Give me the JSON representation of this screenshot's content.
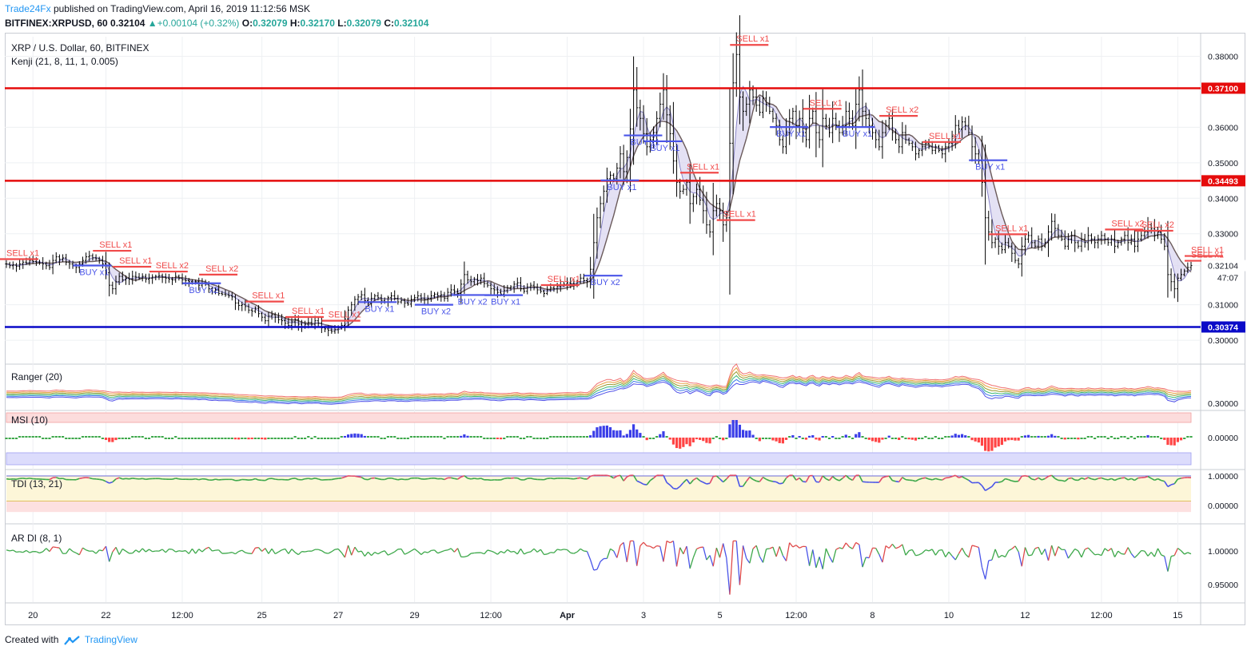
{
  "header": {
    "brand": "Trade24Fx",
    "published": "published on TradingView.com, April 16, 2019 11:12:56 MSK",
    "symbol": "BITFINEX:XRPUSD, 60",
    "last": "0.32104",
    "change": "+0.00104 (+0.32%)",
    "o_label": "O:",
    "o": "0.32079",
    "h_label": "H:",
    "h": "0.32170",
    "l_label": "L:",
    "l": "0.32079",
    "c_label": "C:",
    "c": "0.32104"
  },
  "footer": {
    "created_with": "Created with",
    "brand": "TradingView"
  },
  "colors": {
    "up": "#26a69a",
    "brand": "#2196f3",
    "resistance": "#e50b0b",
    "support": "#0a0ac8",
    "sell": "#f04a4a",
    "buy": "#4a55e8",
    "grid": "#eef0f3",
    "border": "#c9ccd3",
    "hist_pos": "#3b3ee8",
    "hist_neg": "#f44",
    "hist_neu": "#3da84a"
  },
  "chart_data": [
    {
      "type": "line",
      "name": "price",
      "title": "XRP / U.S. Dollar, 60, BITFINEX",
      "indicator": "Kenji (21, 8, 11, 1, 0.005)",
      "ylim": [
        0.2935,
        0.3855
      ],
      "y_ticks": [
        "0.38000",
        "0.36000",
        "0.35000",
        "0.34000",
        "0.33000",
        "0.32104",
        "0.31000",
        "0.30000"
      ],
      "y_tick_values": [
        0.38,
        0.36,
        0.35,
        0.34,
        0.33,
        0.32104,
        0.31,
        0.3
      ],
      "countdown": "47:07",
      "levels": [
        {
          "label": "0.37100",
          "value": 0.371,
          "kind": "resistance"
        },
        {
          "label": "0.34493",
          "value": 0.34493,
          "kind": "resistance"
        },
        {
          "label": "0.30374",
          "value": 0.30374,
          "kind": "support"
        }
      ],
      "x_labels": [
        "20",
        "22",
        "12:00",
        "25",
        "27",
        "29",
        "12:00",
        "Apr",
        "3",
        "5",
        "12:00",
        "8",
        "10",
        "12",
        "12:00",
        "15"
      ],
      "x_label_index": [
        8,
        30,
        53,
        77,
        100,
        123,
        146,
        169,
        192,
        215,
        238,
        261,
        284,
        307,
        330,
        353
      ],
      "x_bold": [
        false,
        false,
        false,
        false,
        false,
        false,
        false,
        true,
        false,
        false,
        false,
        false,
        false,
        false,
        false,
        false
      ],
      "close_approx": [
        0.3215,
        0.321,
        0.3212,
        0.3208,
        0.3215,
        0.322,
        0.3218,
        0.3225,
        0.3222,
        0.322,
        0.3218,
        0.3215,
        0.321,
        0.3205,
        0.3225,
        0.3235,
        0.3228,
        0.3232,
        0.322,
        0.3215,
        0.321,
        0.3205,
        0.3215,
        0.3225,
        0.3235,
        0.3238,
        0.3232,
        0.323,
        0.3225,
        0.3215,
        0.319,
        0.3155,
        0.3145,
        0.3165,
        0.318,
        0.317,
        0.3175,
        0.3172,
        0.318,
        0.3178,
        0.3175,
        0.318,
        0.3172,
        0.3175,
        0.3178,
        0.318,
        0.3182,
        0.3178,
        0.3175,
        0.3172,
        0.317,
        0.318,
        0.3175,
        0.317,
        0.3168,
        0.3165,
        0.3162,
        0.3165,
        0.3155,
        0.316,
        0.3158,
        0.3145,
        0.3138,
        0.3142,
        0.3132,
        0.313,
        0.3128,
        0.3125,
        0.3122,
        0.3105,
        0.3098,
        0.31,
        0.3095,
        0.3085,
        0.3082,
        0.309,
        0.3075,
        0.3065,
        0.3055,
        0.3068,
        0.3072,
        0.3065,
        0.3058,
        0.3055,
        0.3048,
        0.3042,
        0.3052,
        0.3058,
        0.3045,
        0.3038,
        0.3045,
        0.305,
        0.3045,
        0.3055,
        0.3048,
        0.3035,
        0.3032,
        0.3028,
        0.3025,
        0.303,
        0.3035,
        0.3042,
        0.306,
        0.3085,
        0.31,
        0.3115,
        0.3122,
        0.3128,
        0.3112,
        0.3105,
        0.3118,
        0.3125,
        0.312,
        0.3112,
        0.3108,
        0.312,
        0.3125,
        0.3118,
        0.3108,
        0.3112,
        0.3105,
        0.3102,
        0.3115,
        0.312,
        0.3125,
        0.3118,
        0.3115,
        0.3118,
        0.3125,
        0.313,
        0.3125,
        0.3128,
        0.3118,
        0.3135,
        0.3142,
        0.3138,
        0.3132,
        0.3158,
        0.3185,
        0.317,
        0.3165,
        0.3172,
        0.3168,
        0.3175,
        0.316,
        0.3155,
        0.3145,
        0.3142,
        0.3135,
        0.313,
        0.314,
        0.3148,
        0.315,
        0.3158,
        0.3162,
        0.3145,
        0.3138,
        0.315,
        0.3155,
        0.3148,
        0.3142,
        0.3138,
        0.3132,
        0.3142,
        0.3148,
        0.3145,
        0.3152,
        0.3155,
        0.3158,
        0.3162,
        0.316,
        0.3158,
        0.3165,
        0.3175,
        0.3168,
        0.3165,
        0.32,
        0.3275,
        0.3345,
        0.3385,
        0.342,
        0.3455,
        0.3465,
        0.3455,
        0.3485,
        0.3525,
        0.3475,
        0.3515,
        0.3595,
        0.3705,
        0.3655,
        0.3625,
        0.3582,
        0.3545,
        0.3565,
        0.3585,
        0.3625,
        0.3665,
        0.3705,
        0.3635,
        0.3582,
        0.3505,
        0.3445,
        0.342,
        0.3425,
        0.3445,
        0.3385,
        0.3405,
        0.3425,
        0.3395,
        0.3365,
        0.3325,
        0.3305,
        0.3365,
        0.3385,
        0.3365,
        0.3325,
        0.3345,
        0.3555,
        0.3725,
        0.3805,
        0.3685,
        0.3645,
        0.3665,
        0.3705,
        0.3685,
        0.3662,
        0.3642,
        0.3682,
        0.3665,
        0.3645,
        0.3625,
        0.3605,
        0.3565,
        0.3545,
        0.3585,
        0.3625,
        0.3645,
        0.3605,
        0.3625,
        0.3585,
        0.3565,
        0.3625,
        0.3645,
        0.3585,
        0.3565,
        0.3625,
        0.3605,
        0.3585,
        0.3625,
        0.3605,
        0.3585,
        0.3605,
        0.3645,
        0.3625,
        0.3605,
        0.3665,
        0.3705,
        0.3645,
        0.3625,
        0.3605,
        0.3585,
        0.3565,
        0.3545,
        0.3585,
        0.3605,
        0.3625,
        0.3585,
        0.3565,
        0.3545,
        0.3585,
        0.3565,
        0.3555,
        0.3545,
        0.3525,
        0.3535,
        0.3545,
        0.3555,
        0.3545,
        0.3535,
        0.3545,
        0.3535,
        0.3525,
        0.3545,
        0.3555,
        0.3575,
        0.3605,
        0.3595,
        0.3615,
        0.3605,
        0.3585,
        0.3545,
        0.3525,
        0.3505,
        0.3445,
        0.3345,
        0.3305,
        0.3275,
        0.3285,
        0.3265,
        0.3255,
        0.3275,
        0.3265,
        0.3245,
        0.3225,
        0.3215,
        0.3265,
        0.3285,
        0.3295,
        0.3275,
        0.3265,
        0.3285,
        0.3265,
        0.3275,
        0.3305,
        0.3335,
        0.3315,
        0.3295,
        0.3285,
        0.3265,
        0.3285,
        0.3295,
        0.3275,
        0.3265,
        0.3285,
        0.3275,
        0.3295,
        0.3285,
        0.3275,
        0.3285,
        0.3295,
        0.3285,
        0.3275,
        0.3285,
        0.3265,
        0.3275,
        0.3285,
        0.3295,
        0.3275,
        0.3285,
        0.3265,
        0.3285,
        0.3295,
        0.3305,
        0.3325,
        0.3315,
        0.3295,
        0.3305,
        0.3285,
        0.3265,
        0.3185,
        0.3165,
        0.3145,
        0.3175,
        0.3185,
        0.3195,
        0.3205,
        0.32104
      ],
      "signals": [
        {
          "text": "SELL x1",
          "kind": "sell",
          "i": 0
        },
        {
          "text": "SELL x1",
          "kind": "sell",
          "i": 28
        },
        {
          "text": "BUY x1",
          "kind": "buy",
          "i": 22
        },
        {
          "text": "SELL x1",
          "kind": "sell",
          "i": 34
        },
        {
          "text": "SELL x2",
          "kind": "sell",
          "i": 45
        },
        {
          "text": "SELL x2",
          "kind": "sell",
          "i": 60
        },
        {
          "text": "BUY x2",
          "kind": "buy",
          "i": 55
        },
        {
          "text": "SELL x1",
          "kind": "sell",
          "i": 74
        },
        {
          "text": "SELL x1",
          "kind": "sell",
          "i": 86
        },
        {
          "text": "SELL x1",
          "kind": "sell",
          "i": 97
        },
        {
          "text": "BUY x1",
          "kind": "buy",
          "i": 108
        },
        {
          "text": "BUY x2",
          "kind": "buy",
          "i": 125
        },
        {
          "text": "BUY x2",
          "kind": "buy",
          "i": 136
        },
        {
          "text": "BUY x1",
          "kind": "buy",
          "i": 146
        },
        {
          "text": "SELL x1",
          "kind": "sell",
          "i": 163
        },
        {
          "text": "BUY x2",
          "kind": "buy",
          "i": 176
        },
        {
          "text": "BUY x1",
          "kind": "buy",
          "i": 181
        },
        {
          "text": "BUY x1",
          "kind": "buy",
          "i": 188
        },
        {
          "text": "BUY x1",
          "kind": "buy",
          "i": 194
        },
        {
          "text": "SELL x1",
          "kind": "sell",
          "i": 205
        },
        {
          "text": "SELL x1",
          "kind": "sell",
          "i": 216
        },
        {
          "text": "SELL x1",
          "kind": "sell",
          "i": 220
        },
        {
          "text": "BUY x1",
          "kind": "buy",
          "i": 232
        },
        {
          "text": "SELL x1",
          "kind": "sell",
          "i": 242
        },
        {
          "text": "BUY x1",
          "kind": "buy",
          "i": 252
        },
        {
          "text": "SELL x2",
          "kind": "sell",
          "i": 265
        },
        {
          "text": "SELL x1",
          "kind": "sell",
          "i": 278
        },
        {
          "text": "BUY x1",
          "kind": "buy",
          "i": 292
        },
        {
          "text": "SELL x1",
          "kind": "sell",
          "i": 298
        },
        {
          "text": "SELL x2",
          "kind": "sell",
          "i": 333
        },
        {
          "text": "SELL x2",
          "kind": "sell",
          "i": 342
        },
        {
          "text": "SELL x1",
          "kind": "sell",
          "i": 357
        },
        {
          "text": "SELL x1",
          "kind": "sell",
          "i": 370
        }
      ]
    },
    {
      "type": "line",
      "name": "ranger",
      "title": "Ranger (20)",
      "y_ticks": [
        "0.30000"
      ],
      "y_tick_values": [
        0.3
      ]
    },
    {
      "type": "bar",
      "name": "msi",
      "title": "MSI (10)",
      "y_ticks": [
        "0.00000"
      ],
      "y_tick_values": [
        0
      ]
    },
    {
      "type": "line",
      "name": "tdi",
      "title": "TDI (13, 21)",
      "y_ticks": [
        "1.00000",
        "0.00000"
      ],
      "y_tick_values": [
        1,
        0
      ]
    },
    {
      "type": "line",
      "name": "ardi",
      "title": "AR DI (8, 1)",
      "y_ticks": [
        "1.00000",
        "0.95000"
      ],
      "y_tick_values": [
        1.0,
        0.95
      ]
    }
  ]
}
